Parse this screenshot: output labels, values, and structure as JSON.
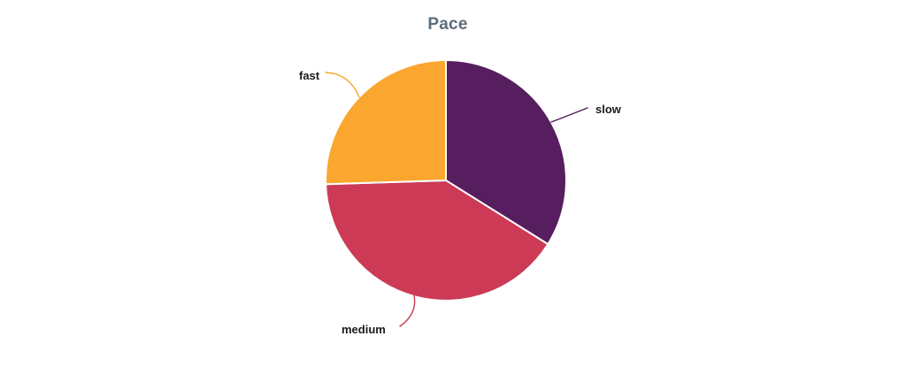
{
  "chart_data": {
    "type": "pie",
    "title": "Pace",
    "title_color": "#5b6c7c",
    "label_color": "#1a1a1a",
    "separator_color": "#ffffff",
    "background_color": "#ffffff",
    "start_angle_deg": 0,
    "direction": "clockwise",
    "legend_position": "none (external labels with leader lines)",
    "slices": [
      {
        "label": "slow",
        "percent": 33.9,
        "angle_deg": 122.0,
        "color": "#561e5e"
      },
      {
        "label": "medium",
        "percent": 40.6,
        "angle_deg": 146.3,
        "color": "#cc3a55"
      },
      {
        "label": "fast",
        "percent": 25.5,
        "angle_deg": 91.7,
        "color": "#faa62f"
      }
    ]
  }
}
